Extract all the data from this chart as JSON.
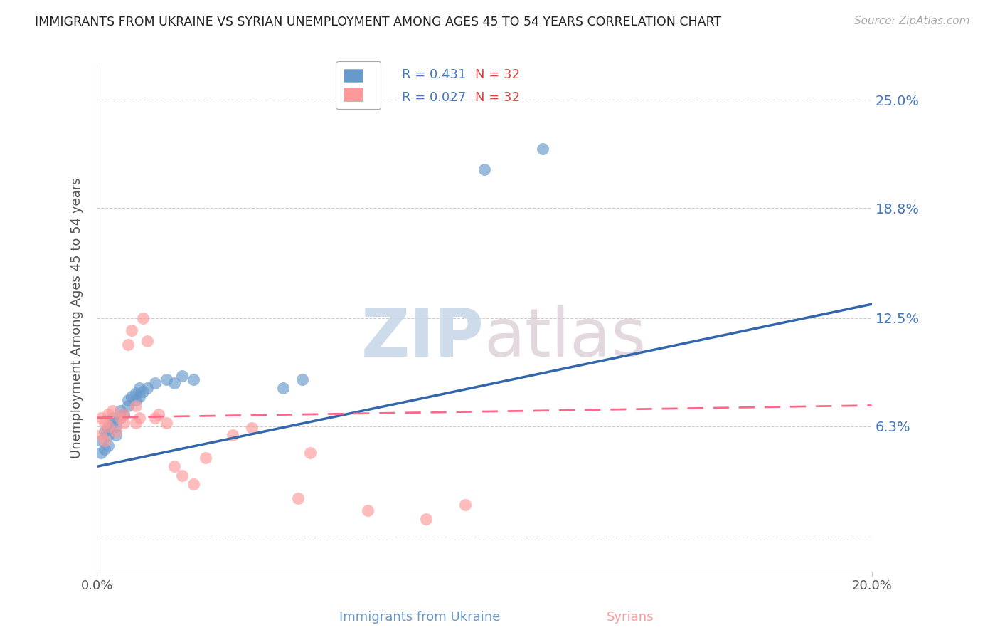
{
  "title": "IMMIGRANTS FROM UKRAINE VS SYRIAN UNEMPLOYMENT AMONG AGES 45 TO 54 YEARS CORRELATION CHART",
  "source": "Source: ZipAtlas.com",
  "ylabel": "Unemployment Among Ages 45 to 54 years",
  "xlabel_ukraine": "Immigrants from Ukraine",
  "xlabel_syrian": "Syrians",
  "xlim": [
    0.0,
    0.2
  ],
  "ylim": [
    -0.02,
    0.27
  ],
  "yticks": [
    0.0,
    0.063,
    0.125,
    0.188,
    0.25
  ],
  "ytick_labels": [
    "",
    "6.3%",
    "12.5%",
    "18.8%",
    "25.0%"
  ],
  "xticks": [
    0.0,
    0.2
  ],
  "xtick_labels": [
    "0.0%",
    "20.0%"
  ],
  "grid_color": "#cccccc",
  "ukraine_color": "#6699cc",
  "syrian_color": "#ff9999",
  "ukraine_line_color": "#3366aa",
  "syrian_line_color": "#ff6688",
  "ukraine_R": "0.431",
  "syrian_R": "0.027",
  "N": "32",
  "watermark_ZIP": "ZIP",
  "watermark_atlas": "atlas",
  "ukraine_scatter_x": [
    0.001,
    0.001,
    0.002,
    0.002,
    0.003,
    0.003,
    0.003,
    0.004,
    0.004,
    0.005,
    0.005,
    0.006,
    0.006,
    0.007,
    0.008,
    0.008,
    0.009,
    0.01,
    0.01,
    0.011,
    0.011,
    0.012,
    0.013,
    0.015,
    0.018,
    0.02,
    0.022,
    0.025,
    0.048,
    0.053,
    0.1,
    0.115
  ],
  "ukraine_scatter_y": [
    0.055,
    0.048,
    0.06,
    0.05,
    0.062,
    0.058,
    0.052,
    0.065,
    0.068,
    0.058,
    0.063,
    0.072,
    0.068,
    0.07,
    0.075,
    0.078,
    0.08,
    0.082,
    0.078,
    0.085,
    0.08,
    0.083,
    0.085,
    0.088,
    0.09,
    0.088,
    0.092,
    0.09,
    0.085,
    0.09,
    0.21,
    0.222
  ],
  "syrian_scatter_x": [
    0.001,
    0.001,
    0.002,
    0.002,
    0.003,
    0.003,
    0.004,
    0.005,
    0.006,
    0.007,
    0.007,
    0.008,
    0.009,
    0.01,
    0.01,
    0.011,
    0.012,
    0.013,
    0.015,
    0.016,
    0.018,
    0.02,
    0.022,
    0.025,
    0.028,
    0.035,
    0.04,
    0.052,
    0.055,
    0.07,
    0.085,
    0.095
  ],
  "syrian_scatter_y": [
    0.068,
    0.058,
    0.065,
    0.055,
    0.07,
    0.063,
    0.072,
    0.06,
    0.068,
    0.07,
    0.065,
    0.11,
    0.118,
    0.065,
    0.075,
    0.068,
    0.125,
    0.112,
    0.068,
    0.07,
    0.065,
    0.04,
    0.035,
    0.03,
    0.045,
    0.058,
    0.062,
    0.022,
    0.048,
    0.015,
    0.01,
    0.018
  ],
  "ukraine_line_x": [
    0.0,
    0.2
  ],
  "ukraine_line_y": [
    0.04,
    0.133
  ],
  "syrian_line_x": [
    0.0,
    0.2
  ],
  "syrian_line_y": [
    0.068,
    0.075
  ]
}
